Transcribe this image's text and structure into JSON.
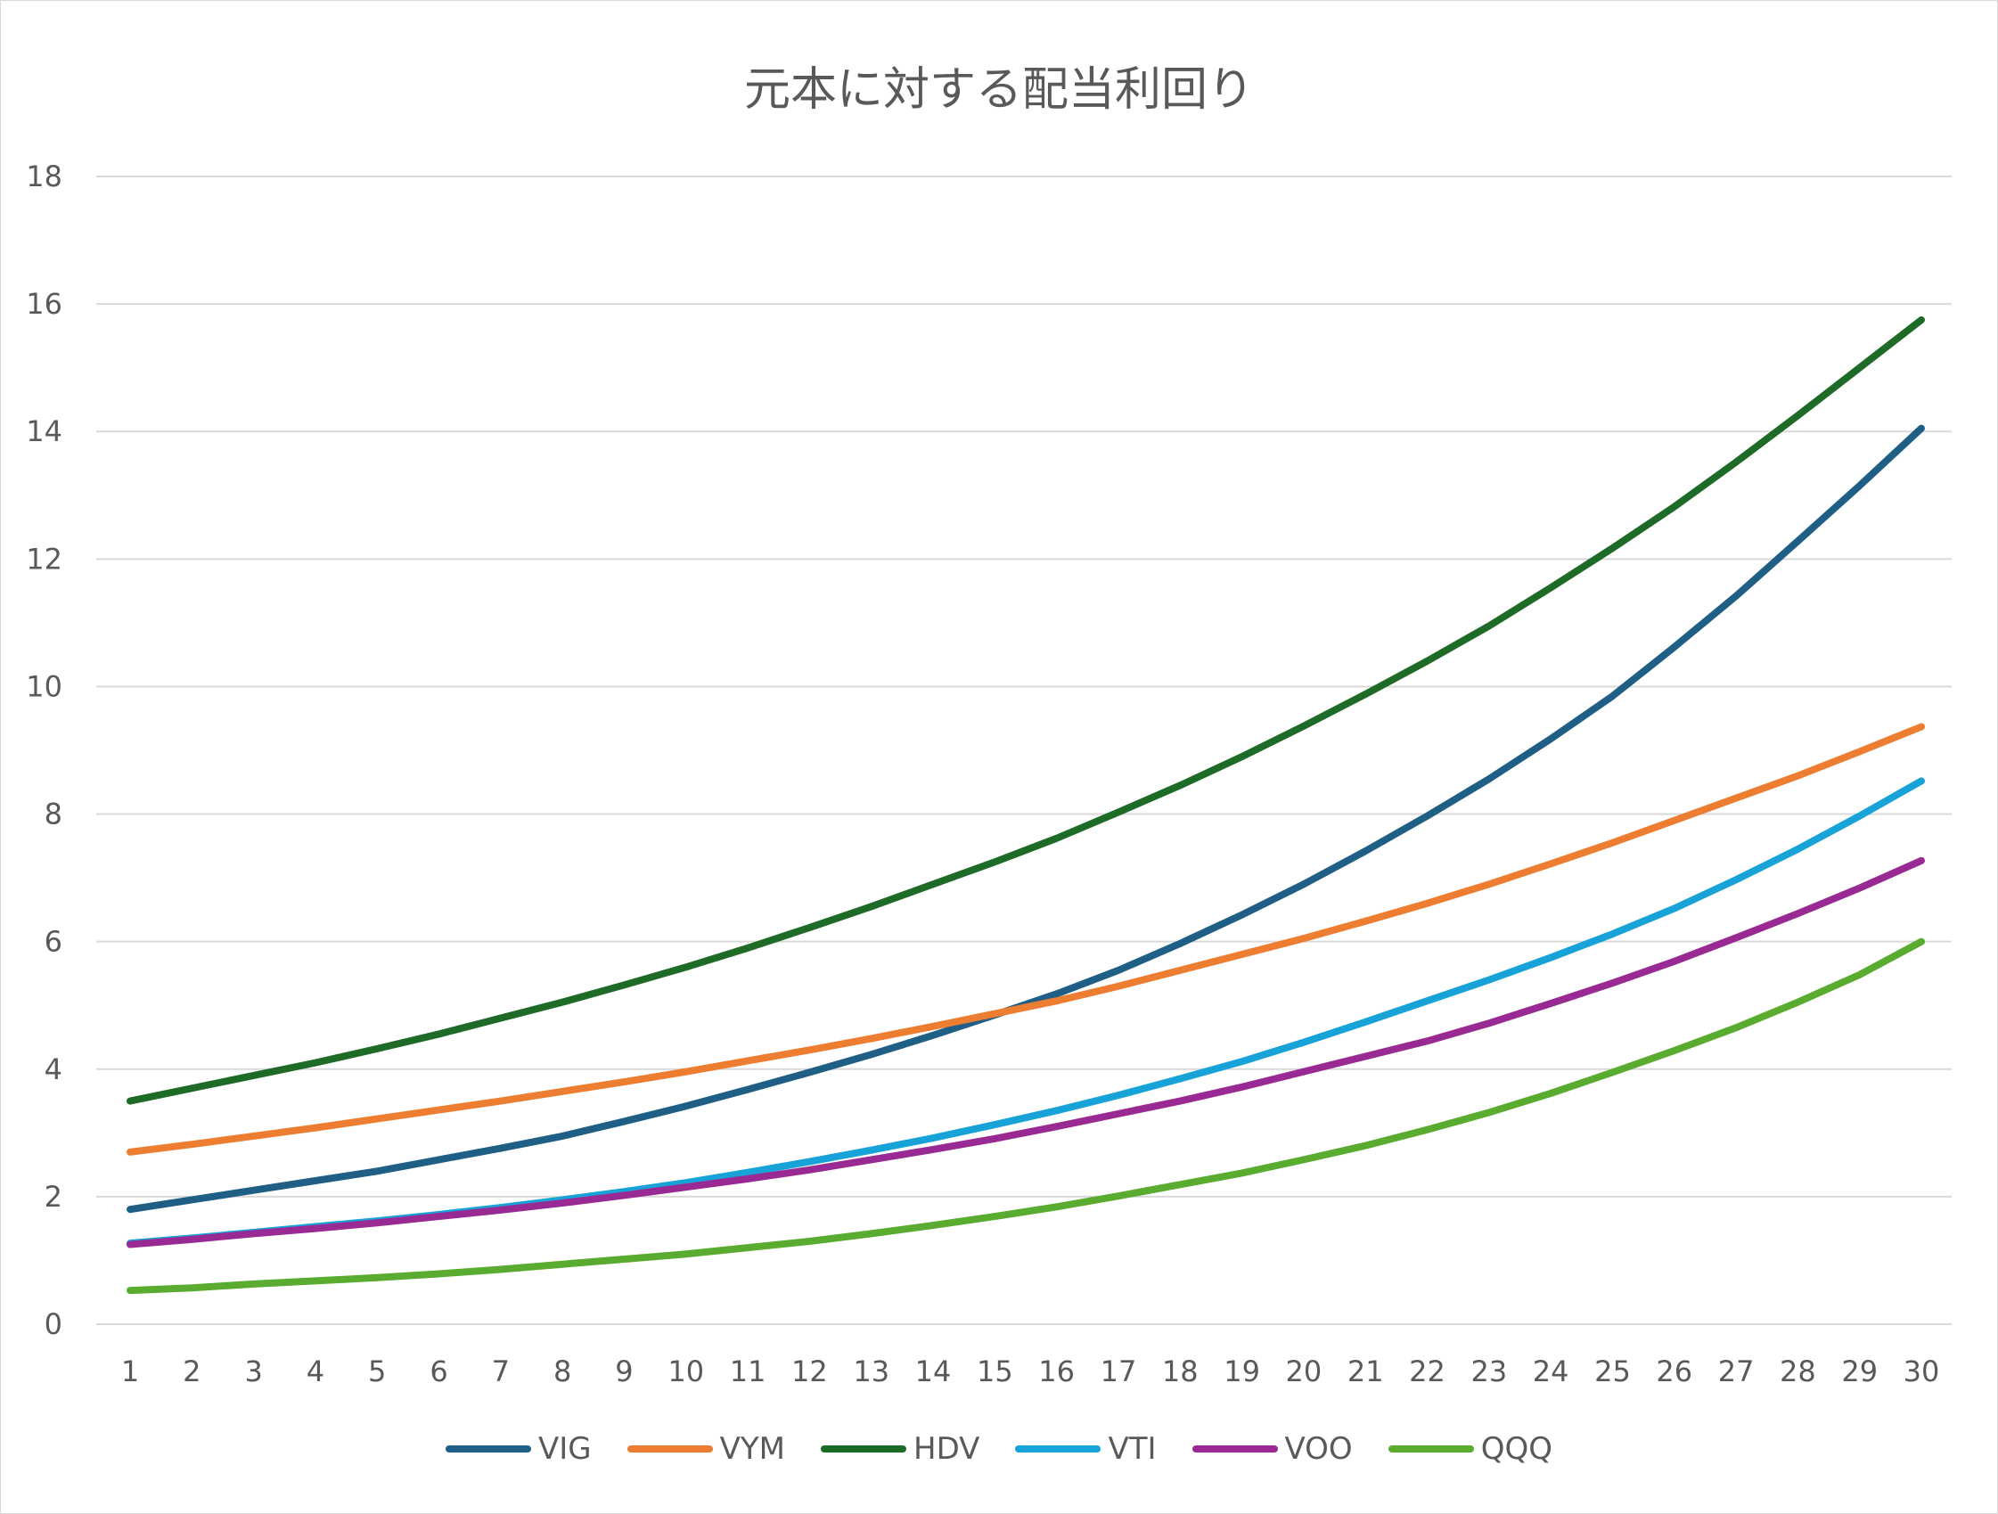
{
  "chart_data": {
    "type": "line",
    "title": "元本に対する配当利回り",
    "xlabel": "",
    "ylabel": "",
    "x": [
      1,
      2,
      3,
      4,
      5,
      6,
      7,
      8,
      9,
      10,
      11,
      12,
      13,
      14,
      15,
      16,
      17,
      18,
      19,
      20,
      21,
      22,
      23,
      24,
      25,
      26,
      27,
      28,
      29,
      30
    ],
    "ylim": [
      0,
      18
    ],
    "yticks": [
      0,
      2,
      4,
      6,
      8,
      10,
      12,
      14,
      16,
      18
    ],
    "grid": true,
    "legend_position": "bottom",
    "series": [
      {
        "name": "VIG",
        "color": "#1f5f86",
        "values": [
          1.8,
          1.95,
          2.1,
          2.25,
          2.4,
          2.58,
          2.76,
          2.95,
          3.18,
          3.42,
          3.68,
          3.95,
          4.23,
          4.53,
          4.85,
          5.18,
          5.55,
          5.97,
          6.42,
          6.9,
          7.42,
          7.97,
          8.55,
          9.18,
          9.85,
          10.62,
          11.42,
          12.28,
          13.15,
          14.05
        ]
      },
      {
        "name": "VYM",
        "color": "#ed7d31",
        "values": [
          2.7,
          2.82,
          2.95,
          3.08,
          3.22,
          3.36,
          3.5,
          3.65,
          3.8,
          3.96,
          4.13,
          4.3,
          4.48,
          4.67,
          4.87,
          5.07,
          5.3,
          5.55,
          5.8,
          6.05,
          6.32,
          6.6,
          6.9,
          7.22,
          7.55,
          7.9,
          8.25,
          8.6,
          8.98,
          9.37
        ]
      },
      {
        "name": "HDV",
        "color": "#1e6b27",
        "values": [
          3.5,
          3.7,
          3.9,
          4.1,
          4.32,
          4.55,
          4.8,
          5.05,
          5.32,
          5.6,
          5.9,
          6.22,
          6.55,
          6.9,
          7.25,
          7.62,
          8.03,
          8.45,
          8.9,
          9.38,
          9.88,
          10.4,
          10.95,
          11.55,
          12.17,
          12.82,
          13.52,
          14.25,
          15.0,
          15.75
        ]
      },
      {
        "name": "VTI",
        "color": "#17a2d8",
        "values": [
          1.27,
          1.35,
          1.44,
          1.53,
          1.62,
          1.72,
          1.83,
          1.95,
          2.08,
          2.22,
          2.38,
          2.55,
          2.73,
          2.92,
          3.13,
          3.35,
          3.59,
          3.85,
          4.12,
          4.42,
          4.74,
          5.07,
          5.4,
          5.75,
          6.12,
          6.52,
          6.97,
          7.45,
          7.97,
          8.52
        ]
      },
      {
        "name": "VOO",
        "color": "#9a2a93",
        "values": [
          1.25,
          1.33,
          1.42,
          1.5,
          1.59,
          1.69,
          1.79,
          1.9,
          2.02,
          2.15,
          2.28,
          2.42,
          2.58,
          2.74,
          2.91,
          3.1,
          3.3,
          3.5,
          3.72,
          3.96,
          4.2,
          4.44,
          4.72,
          5.03,
          5.35,
          5.69,
          6.06,
          6.44,
          6.84,
          7.27
        ]
      },
      {
        "name": "QQQ",
        "color": "#59ac2f",
        "values": [
          0.53,
          0.57,
          0.63,
          0.68,
          0.73,
          0.79,
          0.86,
          0.94,
          1.02,
          1.1,
          1.2,
          1.3,
          1.42,
          1.55,
          1.69,
          1.84,
          2.01,
          2.19,
          2.37,
          2.58,
          2.8,
          3.05,
          3.32,
          3.62,
          3.95,
          4.29,
          4.65,
          5.05,
          5.48,
          6.0
        ]
      }
    ]
  }
}
